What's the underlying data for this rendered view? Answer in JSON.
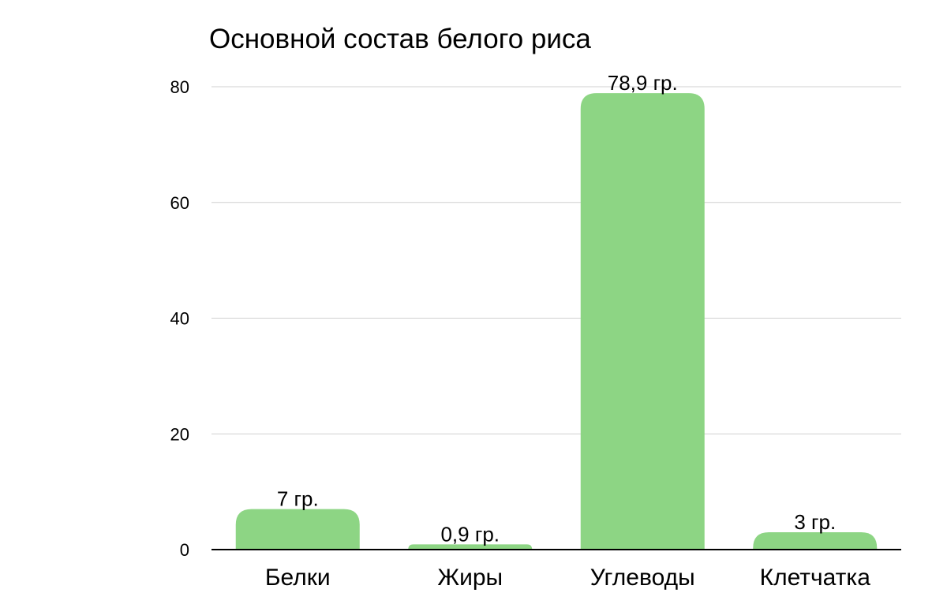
{
  "chart_data": {
    "type": "bar",
    "title": "Основной состав белого риса",
    "categories": [
      "Белки",
      "Жиры",
      "Углеводы",
      "Клетчатка"
    ],
    "values": [
      7,
      0.9,
      78.9,
      3
    ],
    "data_labels": [
      "7 гр.",
      "0,9 гр.",
      "78,9 гр.",
      "3 гр."
    ],
    "yticks": [
      "0",
      "20",
      "40",
      "60",
      "80"
    ],
    "ylim": [
      0,
      80
    ],
    "xlabel": "",
    "ylabel": "",
    "grid": true,
    "legend": "none",
    "bar_color": "#8DD584",
    "grid_color": "#d0d0d0",
    "axis_color": "#000000"
  }
}
